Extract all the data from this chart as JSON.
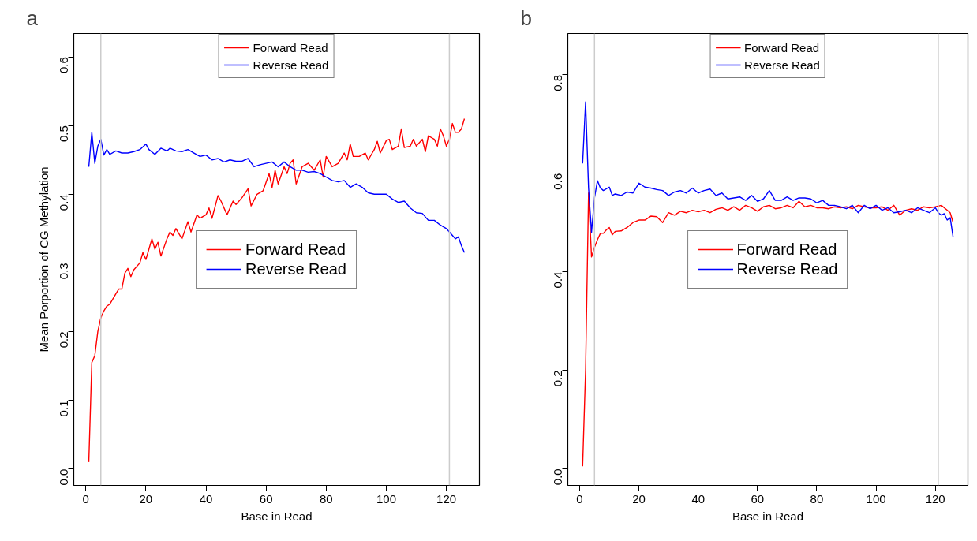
{
  "chart_data": [
    {
      "type": "line",
      "title": "a",
      "xlabel": "Base in Read",
      "ylabel": "Mean Porportion of CG Methylation",
      "xlim": [
        -4,
        131
      ],
      "ylim": [
        -0.024,
        0.634
      ],
      "xticks": [
        0,
        20,
        40,
        60,
        80,
        100,
        120
      ],
      "yticks": [
        {
          "value": 0,
          "label": "0.0"
        },
        0.1,
        0.2,
        0.3,
        0.4,
        0.5,
        0.6
      ],
      "grid": false,
      "legend": [
        "top",
        "center"
      ],
      "line_style": "solid",
      "ref_lines": [
        {
          "axis": "x",
          "value": 5,
          "color": "#cccccc"
        },
        {
          "axis": "x",
          "value": 121,
          "color": "#cccccc"
        }
      ],
      "series": [
        {
          "name": "Forward Read",
          "color": "#ff0000",
          "x": [
            1,
            2,
            3,
            4,
            5,
            6,
            7,
            8,
            10,
            11,
            12,
            13,
            14,
            15,
            16,
            18,
            19,
            20,
            21,
            22,
            23,
            24,
            25,
            27,
            28,
            29,
            30,
            32,
            34,
            35,
            37,
            38,
            40,
            41,
            42,
            44,
            45,
            47,
            49,
            50,
            52,
            54,
            55,
            57,
            59,
            61,
            62,
            63,
            64,
            66,
            67,
            68,
            69,
            70,
            72,
            74,
            76,
            78,
            79,
            80,
            82,
            84,
            86,
            87,
            88,
            89,
            91,
            93,
            94,
            96,
            97,
            98,
            100,
            101,
            102,
            104,
            105,
            106,
            108,
            109,
            110,
            112,
            113,
            114,
            116,
            117,
            118,
            119,
            120,
            121,
            122,
            123,
            124,
            125,
            126
          ],
          "values": [
            0.01,
            0.155,
            0.165,
            0.2,
            0.22,
            0.23,
            0.237,
            0.24,
            0.255,
            0.262,
            0.262,
            0.285,
            0.292,
            0.28,
            0.29,
            0.3,
            0.315,
            0.305,
            0.32,
            0.335,
            0.32,
            0.33,
            0.31,
            0.335,
            0.345,
            0.34,
            0.35,
            0.335,
            0.36,
            0.345,
            0.37,
            0.365,
            0.37,
            0.38,
            0.365,
            0.398,
            0.39,
            0.37,
            0.39,
            0.385,
            0.395,
            0.408,
            0.383,
            0.4,
            0.405,
            0.43,
            0.41,
            0.435,
            0.415,
            0.44,
            0.43,
            0.445,
            0.45,
            0.415,
            0.44,
            0.445,
            0.435,
            0.45,
            0.425,
            0.455,
            0.44,
            0.445,
            0.46,
            0.45,
            0.473,
            0.455,
            0.455,
            0.46,
            0.45,
            0.465,
            0.477,
            0.46,
            0.478,
            0.48,
            0.465,
            0.47,
            0.495,
            0.468,
            0.47,
            0.48,
            0.47,
            0.48,
            0.462,
            0.485,
            0.48,
            0.47,
            0.495,
            0.485,
            0.47,
            0.48,
            0.503,
            0.49,
            0.49,
            0.495,
            0.51
          ]
        },
        {
          "name": "Reverse Read",
          "color": "#0000ff",
          "x": [
            1,
            2,
            3,
            4,
            5,
            6,
            7,
            8,
            10,
            12,
            14,
            16,
            18,
            20,
            21,
            23,
            25,
            27,
            28,
            30,
            32,
            34,
            36,
            38,
            40,
            42,
            44,
            46,
            48,
            50,
            52,
            54,
            56,
            58,
            60,
            62,
            64,
            66,
            68,
            70,
            72,
            74,
            76,
            78,
            80,
            82,
            84,
            86,
            88,
            90,
            92,
            94,
            96,
            98,
            100,
            102,
            104,
            106,
            108,
            110,
            112,
            114,
            116,
            118,
            120,
            122,
            123,
            124,
            125,
            126
          ],
          "values": [
            0.44,
            0.49,
            0.445,
            0.47,
            0.48,
            0.457,
            0.465,
            0.458,
            0.463,
            0.46,
            0.46,
            0.462,
            0.465,
            0.473,
            0.465,
            0.458,
            0.467,
            0.463,
            0.467,
            0.463,
            0.462,
            0.465,
            0.46,
            0.455,
            0.457,
            0.45,
            0.452,
            0.447,
            0.45,
            0.448,
            0.448,
            0.452,
            0.44,
            0.443,
            0.445,
            0.447,
            0.44,
            0.447,
            0.44,
            0.435,
            0.435,
            0.432,
            0.433,
            0.43,
            0.425,
            0.42,
            0.418,
            0.42,
            0.41,
            0.415,
            0.41,
            0.402,
            0.4,
            0.4,
            0.4,
            0.393,
            0.388,
            0.39,
            0.38,
            0.373,
            0.372,
            0.362,
            0.362,
            0.355,
            0.35,
            0.34,
            0.335,
            0.338,
            0.325,
            0.315
          ]
        }
      ]
    },
    {
      "type": "line",
      "title": "b",
      "xlabel": "Base in Read",
      "xlim": [
        -4,
        131
      ],
      "ylim": [
        -0.034,
        0.884
      ],
      "xticks": [
        0,
        20,
        40,
        60,
        80,
        100,
        120
      ],
      "yticks": [
        {
          "value": 0,
          "label": "0.0"
        },
        0.2,
        0.4,
        0.6,
        0.8
      ],
      "grid": false,
      "legend": [
        "top",
        "center"
      ],
      "line_style": "solid",
      "ref_lines": [
        {
          "axis": "x",
          "value": 5,
          "color": "#cccccc"
        },
        {
          "axis": "x",
          "value": 121,
          "color": "#cccccc"
        }
      ],
      "series": [
        {
          "name": "Forward Read",
          "color": "#ff0000",
          "x": [
            1,
            2,
            3,
            4,
            5,
            6,
            7,
            8,
            9,
            10,
            11,
            12,
            14,
            16,
            18,
            20,
            22,
            24,
            26,
            28,
            30,
            32,
            34,
            36,
            38,
            40,
            42,
            44,
            46,
            48,
            50,
            52,
            54,
            56,
            58,
            60,
            62,
            64,
            66,
            68,
            70,
            72,
            74,
            76,
            78,
            80,
            82,
            84,
            86,
            88,
            90,
            92,
            94,
            96,
            98,
            100,
            102,
            104,
            106,
            108,
            110,
            112,
            114,
            116,
            118,
            120,
            122,
            124,
            125,
            126
          ],
          "values": [
            0.005,
            0.2,
            0.56,
            0.43,
            0.45,
            0.465,
            0.478,
            0.478,
            0.485,
            0.49,
            0.475,
            0.482,
            0.483,
            0.49,
            0.5,
            0.505,
            0.505,
            0.513,
            0.512,
            0.5,
            0.52,
            0.515,
            0.523,
            0.52,
            0.525,
            0.522,
            0.525,
            0.52,
            0.527,
            0.53,
            0.525,
            0.532,
            0.525,
            0.535,
            0.53,
            0.523,
            0.532,
            0.535,
            0.528,
            0.53,
            0.535,
            0.53,
            0.543,
            0.532,
            0.535,
            0.53,
            0.53,
            0.528,
            0.532,
            0.53,
            0.532,
            0.528,
            0.535,
            0.532,
            0.53,
            0.53,
            0.532,
            0.525,
            0.535,
            0.515,
            0.525,
            0.528,
            0.525,
            0.532,
            0.53,
            0.532,
            0.535,
            0.525,
            0.52,
            0.5
          ]
        },
        {
          "name": "Reverse Read",
          "color": "#0000ff",
          "x": [
            1,
            2,
            3,
            4,
            5,
            6,
            7,
            8,
            10,
            11,
            12,
            14,
            16,
            18,
            20,
            22,
            24,
            26,
            28,
            30,
            32,
            34,
            36,
            38,
            40,
            42,
            44,
            46,
            48,
            50,
            52,
            54,
            56,
            58,
            60,
            62,
            64,
            66,
            68,
            70,
            72,
            74,
            76,
            78,
            80,
            82,
            84,
            86,
            88,
            90,
            92,
            94,
            96,
            98,
            100,
            102,
            104,
            106,
            108,
            110,
            112,
            114,
            116,
            118,
            120,
            121,
            122,
            123,
            124,
            125,
            126
          ],
          "values": [
            0.62,
            0.745,
            0.57,
            0.48,
            0.55,
            0.585,
            0.57,
            0.565,
            0.572,
            0.555,
            0.558,
            0.555,
            0.562,
            0.56,
            0.58,
            0.572,
            0.57,
            0.567,
            0.565,
            0.555,
            0.562,
            0.565,
            0.56,
            0.57,
            0.56,
            0.565,
            0.568,
            0.555,
            0.56,
            0.548,
            0.55,
            0.552,
            0.545,
            0.555,
            0.543,
            0.548,
            0.565,
            0.545,
            0.545,
            0.552,
            0.545,
            0.55,
            0.55,
            0.548,
            0.54,
            0.545,
            0.535,
            0.535,
            0.532,
            0.528,
            0.535,
            0.52,
            0.535,
            0.528,
            0.535,
            0.525,
            0.53,
            0.52,
            0.522,
            0.525,
            0.52,
            0.53,
            0.525,
            0.52,
            0.53,
            0.52,
            0.515,
            0.518,
            0.505,
            0.51,
            0.47
          ]
        }
      ]
    }
  ]
}
